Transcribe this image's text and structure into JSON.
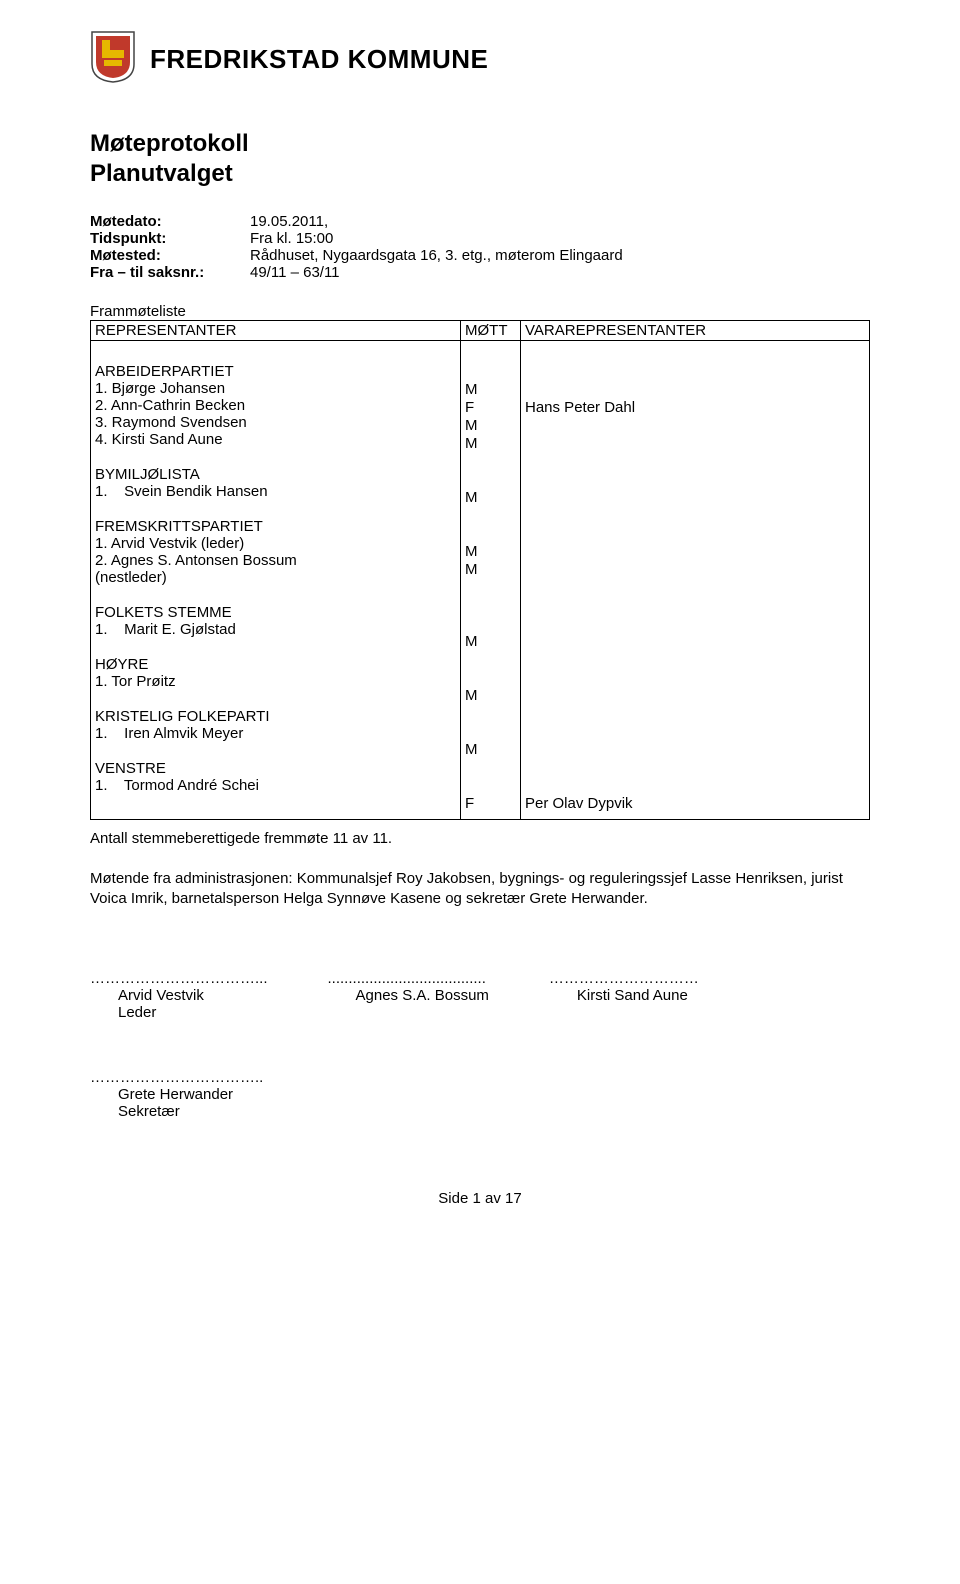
{
  "header": {
    "org_name": "FREDRIKSTAD KOMMUNE",
    "logo": {
      "bg": "#ffffff",
      "stroke": "#6a0f0f",
      "red": "#c0392b",
      "yellow": "#e6b800"
    }
  },
  "title": {
    "line1": "Møteprotokoll",
    "line2": "Planutvalget"
  },
  "meta": {
    "rows": [
      {
        "label": "Møtedato:",
        "value": "19.05.2011,"
      },
      {
        "label": "Tidspunkt:",
        "value": "Fra kl. 15:00"
      },
      {
        "label": "Møtested:",
        "value": "Rådhuset, Nygaardsgata 16, 3. etg., møterom Elingaard"
      },
      {
        "label": "Fra – til saksnr.:",
        "value": "49/11 – 63/11"
      }
    ]
  },
  "frammote_label": "Frammøteliste",
  "att_header": {
    "rep": "REPRESENTANTER",
    "mott": "MØTT",
    "vara": "VARAREPRESENTANTER"
  },
  "groups": [
    {
      "name": "ARBEIDERPARTIET",
      "members": [
        {
          "idx": "1.",
          "name": "Bjørge Johansen",
          "mott": "M",
          "vara": ""
        },
        {
          "idx": "2.",
          "name": "Ann-Cathrin Becken",
          "mott": "F",
          "vara": "Hans Peter Dahl"
        },
        {
          "idx": "3.",
          "name": "Raymond Svendsen",
          "mott": "M",
          "vara": ""
        },
        {
          "idx": "4.",
          "name": "Kirsti Sand Aune",
          "mott": "M",
          "vara": ""
        }
      ]
    },
    {
      "name": "BYMILJØLISTA",
      "members": [
        {
          "idx": "1.",
          "name": "   Svein Bendik Hansen",
          "mott": "M",
          "vara": ""
        }
      ]
    },
    {
      "name": "FREMSKRITTSPARTIET",
      "members": [
        {
          "idx": "1.",
          "name": "Arvid Vestvik (leder)",
          "mott": "M",
          "vara": ""
        },
        {
          "idx": "2.",
          "name": "Agnes S. Antonsen Bossum",
          "mott": "M",
          "vara": ""
        }
      ],
      "suffix": "(nestleder)"
    },
    {
      "name": "FOLKETS STEMME",
      "members": [
        {
          "idx": "1.",
          "name": "   Marit E. Gjølstad",
          "mott": "M",
          "vara": ""
        }
      ]
    },
    {
      "name": "HØYRE",
      "members": [
        {
          "idx": "1.",
          "name": "Tor Prøitz",
          "mott": "M",
          "vara": ""
        }
      ]
    },
    {
      "name": "KRISTELIG FOLKEPARTI",
      "members": [
        {
          "idx": "1.",
          "name": "   Iren Almvik Meyer",
          "mott": "M",
          "vara": ""
        }
      ]
    },
    {
      "name": "VENSTRE",
      "members": [
        {
          "idx": "1.",
          "name": "   Tormod André Schei",
          "mott": "F",
          "vara": "Per Olav Dypvik"
        }
      ]
    }
  ],
  "antall": "Antall stemmeberettigede fremmøte 11 av 11.",
  "admin": "Møtende fra administrasjonen: Kommunalsjef Roy Jakobsen, bygnings- og reguleringssjef Lasse Henriksen, jurist Voica Imrik, barnetalsperson Helga Synnøve Kasene og sekretær Grete Herwander.",
  "signatures": {
    "row1": [
      {
        "dots": "……………………………...",
        "name": "Arvid Vestvik",
        "role": "Leder"
      },
      {
        "dots": "......................................",
        "name": "Agnes S.A. Bossum",
        "role": ""
      },
      {
        "dots": "…………………………",
        "name": "Kirsti Sand Aune",
        "role": ""
      }
    ],
    "row2": {
      "dots": "……………………………..",
      "name": "Grete Herwander",
      "role": "Sekretær"
    }
  },
  "footer": "Side 1 av 17"
}
